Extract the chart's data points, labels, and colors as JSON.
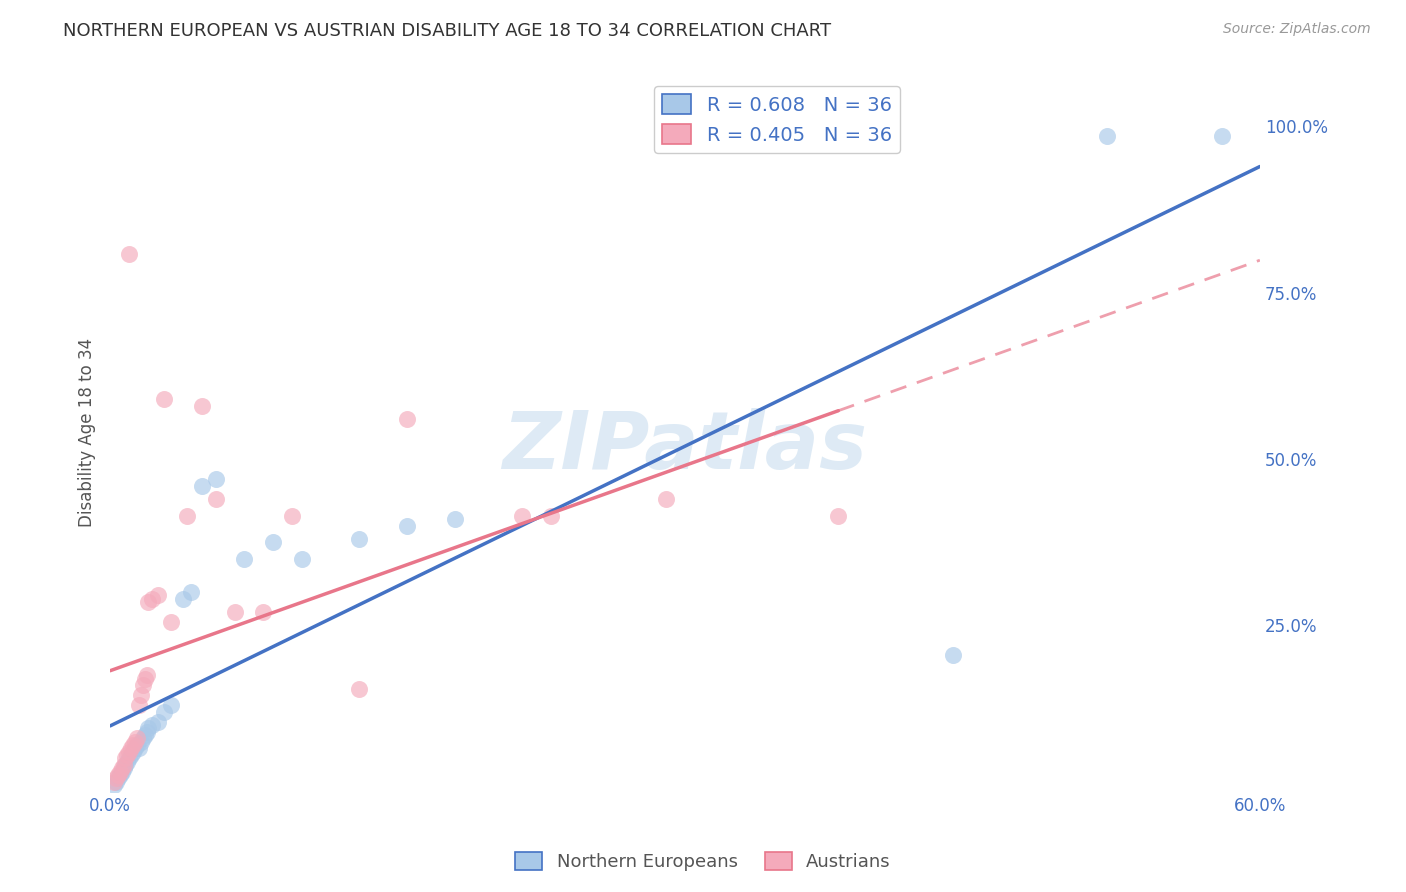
{
  "title_actual": "NORTHERN EUROPEAN VS AUSTRIAN DISABILITY AGE 18 TO 34 CORRELATION CHART",
  "source_text": "Source: ZipAtlas.com",
  "ylabel": "Disability Age 18 to 34",
  "xlim": [
    0.0,
    0.6
  ],
  "ylim": [
    0.0,
    1.08
  ],
  "xtick_vals": [
    0.0,
    0.1,
    0.2,
    0.3,
    0.4,
    0.5,
    0.6
  ],
  "xtick_labels_show": [
    "0.0%",
    "",
    "",
    "",
    "",
    "",
    "60.0%"
  ],
  "ytick_vals_right": [
    0.0,
    0.25,
    0.5,
    0.75,
    1.0
  ],
  "ytick_labels_right": [
    "",
    "25.0%",
    "50.0%",
    "75.0%",
    "100.0%"
  ],
  "R_blue": 0.608,
  "N_blue": 36,
  "R_pink": 0.405,
  "N_pink": 36,
  "blue_scatter_color": "#A8C8E8",
  "pink_scatter_color": "#F4AABB",
  "blue_line_color": "#4472C4",
  "pink_line_color": "#E8768A",
  "watermark": "ZIPatlas",
  "ne_x": [
    0.002,
    0.003,
    0.004,
    0.005,
    0.006,
    0.007,
    0.008,
    0.009,
    0.01,
    0.011,
    0.012,
    0.013,
    0.014,
    0.015,
    0.016,
    0.017,
    0.018,
    0.019,
    0.02,
    0.022,
    0.025,
    0.028,
    0.032,
    0.038,
    0.042,
    0.048,
    0.055,
    0.07,
    0.085,
    0.1,
    0.13,
    0.155,
    0.18,
    0.44,
    0.52,
    0.58
  ],
  "ne_y": [
    0.01,
    0.015,
    0.02,
    0.025,
    0.03,
    0.035,
    0.04,
    0.045,
    0.05,
    0.055,
    0.06,
    0.065,
    0.07,
    0.065,
    0.075,
    0.08,
    0.085,
    0.09,
    0.095,
    0.1,
    0.105,
    0.12,
    0.13,
    0.29,
    0.3,
    0.46,
    0.47,
    0.35,
    0.375,
    0.35,
    0.38,
    0.4,
    0.41,
    0.205,
    0.985,
    0.985
  ],
  "au_x": [
    0.002,
    0.003,
    0.004,
    0.005,
    0.006,
    0.007,
    0.008,
    0.009,
    0.01,
    0.011,
    0.012,
    0.013,
    0.014,
    0.015,
    0.016,
    0.017,
    0.018,
    0.019,
    0.02,
    0.022,
    0.025,
    0.028,
    0.032,
    0.04,
    0.048,
    0.055,
    0.065,
    0.08,
    0.095,
    0.13,
    0.155,
    0.215,
    0.23,
    0.29,
    0.38,
    0.01
  ],
  "au_y": [
    0.015,
    0.02,
    0.025,
    0.03,
    0.035,
    0.04,
    0.05,
    0.055,
    0.06,
    0.065,
    0.07,
    0.075,
    0.08,
    0.13,
    0.145,
    0.16,
    0.17,
    0.175,
    0.285,
    0.29,
    0.295,
    0.59,
    0.255,
    0.415,
    0.58,
    0.44,
    0.27,
    0.27,
    0.415,
    0.155,
    0.56,
    0.415,
    0.415,
    0.44,
    0.415,
    0.808
  ],
  "background_color": "#FFFFFF",
  "grid_color": "#DDDDDD"
}
